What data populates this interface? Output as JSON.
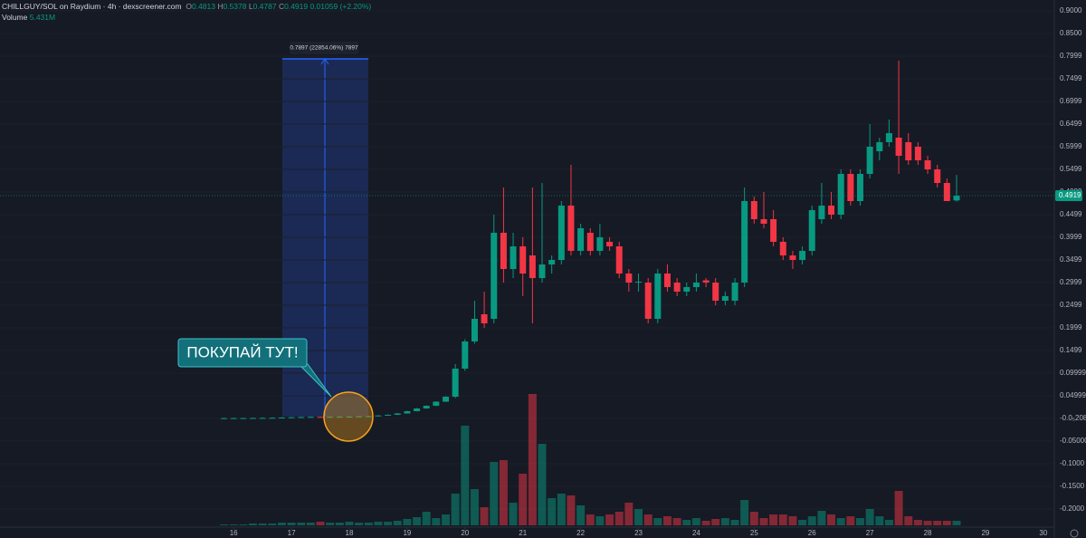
{
  "header": {
    "symbol": "CHILLGUY/SOL on Raydium · 4h · dexscreener.com",
    "o_label": "O",
    "h_label": "H",
    "l_label": "L",
    "c_label": "C",
    "change": "0.01059 (+2.20%)",
    "volume_label": "Volume",
    "volume_value": "5.431M"
  },
  "measure_label": "0.7897 (22854.06%) 7897",
  "callout": "ПОКУПАЙ ТУТ!",
  "chart_data": {
    "type": "candlestick",
    "x": [
      15.833,
      16,
      16.167,
      16.333,
      16.5,
      16.667,
      16.833,
      17,
      17.167,
      17.333,
      17.5,
      17.667,
      17.833,
      18,
      18.167,
      18.333,
      18.5,
      18.667,
      18.833,
      19,
      19.167,
      19.333,
      19.5,
      19.667,
      19.833,
      20,
      20.167,
      20.333,
      20.5,
      20.667,
      20.833,
      21,
      21.167,
      21.333,
      21.5,
      21.667,
      21.833,
      22,
      22.167,
      22.333,
      22.5,
      22.667,
      22.833,
      23,
      23.167,
      23.333,
      23.5,
      23.667,
      23.833,
      24,
      24.167,
      24.333,
      24.5,
      24.667,
      24.833,
      25,
      25.167,
      25.333,
      25.5,
      25.667,
      25.833,
      26,
      26.167,
      26.333,
      26.5,
      26.667,
      26.833,
      27,
      27.167,
      27.333,
      27.5,
      27.667,
      27.833,
      28,
      28.167,
      28.333,
      28.5
    ],
    "open": [
      0.0005,
      0.0006,
      0.0007,
      0.0008,
      0.001,
      0.0012,
      0.0015,
      0.002,
      0.0025,
      0.003,
      0.0034,
      0.0032,
      0.0035,
      0.0038,
      0.004,
      0.0045,
      0.005,
      0.0065,
      0.008,
      0.011,
      0.016,
      0.022,
      0.028,
      0.037,
      0.048,
      0.11,
      0.17,
      0.23,
      0.22,
      0.41,
      0.33,
      0.38,
      0.36,
      0.31,
      0.34,
      0.35,
      0.47,
      0.37,
      0.41,
      0.37,
      0.39,
      0.38,
      0.32,
      0.3,
      0.3,
      0.22,
      0.32,
      0.3,
      0.28,
      0.29,
      0.305,
      0.3,
      0.26,
      0.26,
      0.3,
      0.48,
      0.44,
      0.44,
      0.39,
      0.36,
      0.35,
      0.37,
      0.44,
      0.47,
      0.45,
      0.54,
      0.48,
      0.54,
      0.59,
      0.61,
      0.62,
      0.61,
      0.6,
      0.57,
      0.55,
      0.52,
      0.4813
    ],
    "high": [
      0.0016,
      0.0017,
      0.0018,
      0.002,
      0.0022,
      0.0025,
      0.003,
      0.0035,
      0.004,
      0.0044,
      0.0044,
      0.0045,
      0.0048,
      0.005,
      0.0055,
      0.006,
      0.0075,
      0.009,
      0.012,
      0.017,
      0.023,
      0.029,
      0.038,
      0.049,
      0.12,
      0.175,
      0.26,
      0.28,
      0.45,
      0.51,
      0.41,
      0.4,
      0.51,
      0.52,
      0.36,
      0.48,
      0.56,
      0.43,
      0.42,
      0.43,
      0.4,
      0.39,
      0.33,
      0.32,
      0.31,
      0.33,
      0.34,
      0.31,
      0.3,
      0.32,
      0.31,
      0.31,
      0.28,
      0.31,
      0.51,
      0.49,
      0.5,
      0.46,
      0.4,
      0.37,
      0.38,
      0.47,
      0.52,
      0.5,
      0.55,
      0.55,
      0.55,
      0.65,
      0.62,
      0.66,
      0.79,
      0.63,
      0.61,
      0.58,
      0.56,
      0.53,
      0.5378
    ],
    "low": [
      0.0001,
      0.0001,
      0.0002,
      0.0003,
      0.0005,
      0.0007,
      0.001,
      0.0015,
      0.002,
      0.0025,
      0.0027,
      0.0027,
      0.003,
      0.0033,
      0.0035,
      0.004,
      0.0045,
      0.006,
      0.0075,
      0.0105,
      0.0155,
      0.0215,
      0.0275,
      0.0365,
      0.045,
      0.105,
      0.165,
      0.2,
      0.21,
      0.3,
      0.31,
      0.27,
      0.21,
      0.3,
      0.32,
      0.34,
      0.36,
      0.36,
      0.36,
      0.36,
      0.37,
      0.31,
      0.28,
      0.28,
      0.21,
      0.21,
      0.28,
      0.27,
      0.27,
      0.28,
      0.29,
      0.25,
      0.25,
      0.25,
      0.29,
      0.43,
      0.42,
      0.38,
      0.35,
      0.33,
      0.34,
      0.36,
      0.43,
      0.44,
      0.44,
      0.47,
      0.47,
      0.53,
      0.57,
      0.6,
      0.54,
      0.56,
      0.56,
      0.54,
      0.51,
      0.48,
      0.4787
    ],
    "close": [
      0.0006,
      0.0007,
      0.0008,
      0.001,
      0.0012,
      0.0015,
      0.002,
      0.0025,
      0.003,
      0.0034,
      0.0032,
      0.0035,
      0.0038,
      0.004,
      0.0045,
      0.005,
      0.0065,
      0.008,
      0.011,
      0.016,
      0.022,
      0.028,
      0.037,
      0.048,
      0.11,
      0.17,
      0.22,
      0.21,
      0.41,
      0.33,
      0.38,
      0.32,
      0.31,
      0.34,
      0.35,
      0.47,
      0.37,
      0.42,
      0.37,
      0.4,
      0.38,
      0.32,
      0.3,
      0.302,
      0.22,
      0.32,
      0.29,
      0.28,
      0.29,
      0.3,
      0.3,
      0.26,
      0.27,
      0.3,
      0.48,
      0.44,
      0.43,
      0.39,
      0.36,
      0.35,
      0.37,
      0.46,
      0.47,
      0.45,
      0.54,
      0.48,
      0.54,
      0.6,
      0.61,
      0.63,
      0.58,
      0.57,
      0.57,
      0.55,
      0.52,
      0.48,
      0.4919
    ],
    "volume": [
      1,
      1,
      1,
      2,
      2,
      2,
      3,
      3,
      3,
      3,
      4,
      3,
      3,
      4,
      3,
      3,
      4,
      4,
      5,
      7,
      9,
      15,
      8,
      12,
      35,
      110,
      40,
      20,
      70,
      72,
      25,
      57,
      145,
      90,
      30,
      35,
      33,
      22,
      12,
      10,
      12,
      15,
      25,
      18,
      12,
      8,
      10,
      8,
      6,
      8,
      5,
      7,
      8,
      6,
      28,
      15,
      8,
      12,
      12,
      10,
      6,
      10,
      16,
      12,
      8,
      10,
      8,
      18,
      10,
      6,
      38,
      10,
      6,
      5,
      5,
      5,
      5
    ],
    "up_color": "#089981",
    "down_color": "#f23645",
    "xlim": [
      11.96,
      30.19
    ],
    "xticks": [
      16,
      17,
      18,
      19,
      20,
      21,
      22,
      23,
      24,
      25,
      26,
      27,
      28,
      29,
      30
    ],
    "ylim": [
      -0.24,
      0.924
    ],
    "yticks": [
      {
        "value": 0.9,
        "label": "0.9000"
      },
      {
        "value": 0.85,
        "label": "0.8500"
      },
      0.7999,
      0.7499,
      0.6999,
      0.6499,
      0.5999,
      0.5499,
      0.4999,
      0.4499,
      0.3999,
      0.3499,
      0.2999,
      0.2499,
      0.1999,
      0.1499,
      0.09999,
      0.04999,
      {
        "value": -2.08e-06,
        "label": "-0.0₅208"
      },
      {
        "value": -0.05,
        "label": "-0.05000"
      },
      {
        "value": -0.1,
        "label": "-0.1000"
      },
      {
        "value": -0.15,
        "label": "-0.1500"
      },
      {
        "value": -0.2,
        "label": "-0.2000"
      }
    ]
  }
}
